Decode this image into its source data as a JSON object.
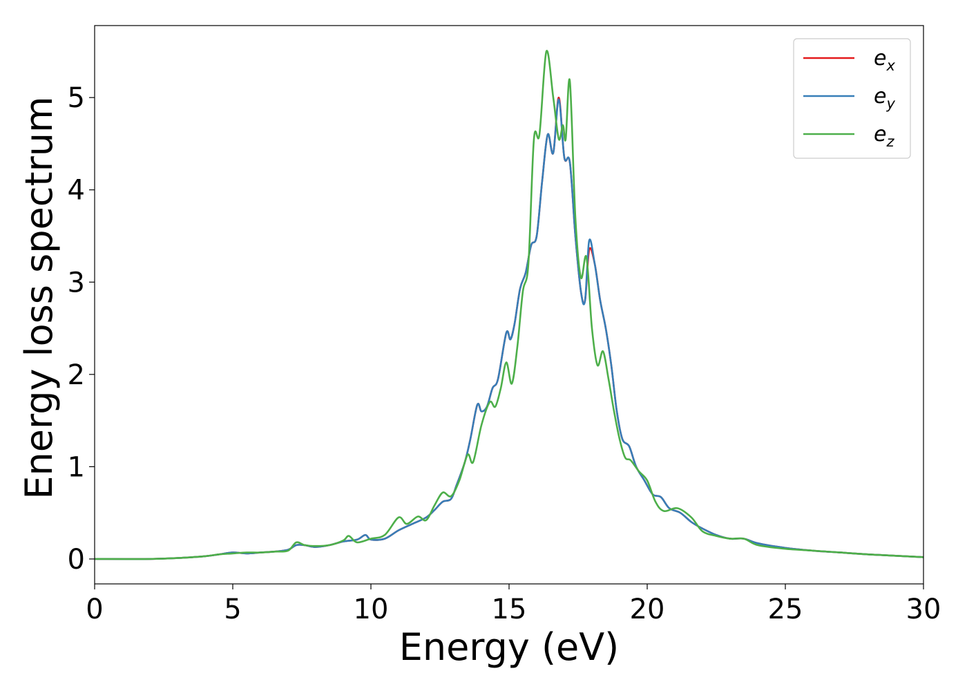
{
  "chart_data": {
    "type": "line",
    "title": "",
    "xlabel": "Energy (eV)",
    "ylabel": "Energy loss spectrum",
    "xlim": [
      0,
      30
    ],
    "ylim": [
      -0.27,
      5.78
    ],
    "xticks": [
      0,
      5,
      10,
      15,
      20,
      25,
      30
    ],
    "xtick_labels": [
      "0",
      "5",
      "10",
      "15",
      "20",
      "25",
      "30"
    ],
    "yticks": [
      0,
      1,
      2,
      3,
      4,
      5
    ],
    "ytick_labels": [
      "0",
      "1",
      "2",
      "3",
      "4",
      "5"
    ],
    "grid": false,
    "legend_position": "top-right",
    "series": [
      {
        "name": "e_x",
        "legend_base": "e",
        "legend_sub": "x",
        "color": "#e41a1c",
        "x": [
          0,
          2,
          3,
          4,
          4.5,
          5,
          5.5,
          6,
          6.5,
          7,
          7.3,
          7.6,
          8,
          8.5,
          9,
          9.5,
          9.8,
          10,
          10.5,
          11,
          11.5,
          12,
          12.3,
          12.6,
          12.9,
          13.1,
          13.4,
          13.6,
          13.85,
          14.0,
          14.2,
          14.4,
          14.6,
          14.9,
          15.05,
          15.2,
          15.4,
          15.6,
          15.8,
          16.0,
          16.2,
          16.4,
          16.6,
          16.8,
          17.0,
          17.2,
          17.4,
          17.6,
          17.75,
          17.9,
          18.1,
          18.3,
          18.5,
          18.7,
          18.9,
          19.1,
          19.35,
          19.6,
          19.9,
          20.2,
          20.5,
          20.8,
          21.2,
          21.6,
          22,
          22.5,
          23,
          23.5,
          24,
          25,
          26,
          27,
          28,
          30
        ],
        "y": [
          0,
          0.0,
          0.01,
          0.03,
          0.05,
          0.07,
          0.06,
          0.07,
          0.08,
          0.1,
          0.15,
          0.15,
          0.13,
          0.15,
          0.19,
          0.21,
          0.26,
          0.21,
          0.22,
          0.31,
          0.38,
          0.45,
          0.53,
          0.62,
          0.65,
          0.8,
          1.05,
          1.3,
          1.67,
          1.6,
          1.65,
          1.85,
          1.95,
          2.45,
          2.38,
          2.55,
          2.93,
          3.1,
          3.4,
          3.5,
          4.1,
          4.6,
          4.4,
          5.0,
          4.35,
          4.3,
          3.5,
          2.9,
          2.8,
          3.35,
          3.2,
          2.8,
          2.5,
          2.1,
          1.6,
          1.3,
          1.22,
          1.0,
          0.85,
          0.7,
          0.67,
          0.55,
          0.5,
          0.4,
          0.33,
          0.26,
          0.22,
          0.22,
          0.17,
          0.12,
          0.09,
          0.07,
          0.05,
          0.02
        ]
      },
      {
        "name": "e_y",
        "legend_base": "e",
        "legend_sub": "y",
        "color": "#377eb8",
        "x": [
          0,
          2,
          3,
          4,
          4.5,
          5,
          5.5,
          6,
          6.5,
          7,
          7.3,
          7.6,
          8,
          8.5,
          9,
          9.5,
          9.8,
          10,
          10.5,
          11,
          11.5,
          12,
          12.3,
          12.6,
          12.9,
          13.1,
          13.4,
          13.6,
          13.85,
          14.0,
          14.2,
          14.4,
          14.6,
          14.9,
          15.05,
          15.2,
          15.4,
          15.6,
          15.8,
          16.0,
          16.2,
          16.4,
          16.6,
          16.8,
          17.0,
          17.2,
          17.4,
          17.6,
          17.75,
          17.9,
          18.1,
          18.3,
          18.5,
          18.7,
          18.9,
          19.1,
          19.35,
          19.6,
          19.9,
          20.2,
          20.5,
          20.8,
          21.2,
          21.6,
          22,
          22.5,
          23,
          23.5,
          24,
          25,
          26,
          27,
          28,
          30
        ],
        "y": [
          0,
          0.0,
          0.01,
          0.03,
          0.05,
          0.07,
          0.06,
          0.07,
          0.08,
          0.1,
          0.15,
          0.15,
          0.13,
          0.15,
          0.19,
          0.21,
          0.26,
          0.21,
          0.22,
          0.31,
          0.38,
          0.45,
          0.53,
          0.62,
          0.65,
          0.8,
          1.05,
          1.3,
          1.67,
          1.6,
          1.65,
          1.85,
          1.95,
          2.45,
          2.38,
          2.55,
          2.93,
          3.1,
          3.4,
          3.5,
          4.1,
          4.6,
          4.4,
          4.98,
          4.35,
          4.3,
          3.5,
          2.9,
          2.8,
          3.45,
          3.2,
          2.8,
          2.5,
          2.1,
          1.6,
          1.3,
          1.22,
          1.0,
          0.85,
          0.7,
          0.67,
          0.55,
          0.5,
          0.4,
          0.33,
          0.26,
          0.22,
          0.22,
          0.17,
          0.12,
          0.09,
          0.07,
          0.05,
          0.02
        ]
      },
      {
        "name": "e_z",
        "legend_base": "e",
        "legend_sub": "z",
        "color": "#4daf4a",
        "x": [
          0,
          2,
          3,
          4,
          4.5,
          5,
          5.5,
          6,
          6.5,
          7,
          7.3,
          7.6,
          8,
          8.5,
          9,
          9.2,
          9.5,
          10,
          10.5,
          11.0,
          11.3,
          11.7,
          12.0,
          12.3,
          12.6,
          12.9,
          13.2,
          13.5,
          13.7,
          14.0,
          14.3,
          14.5,
          14.7,
          14.9,
          15.1,
          15.3,
          15.5,
          15.7,
          15.9,
          16.1,
          16.35,
          16.6,
          16.8,
          16.95,
          17.05,
          17.2,
          17.4,
          17.6,
          17.8,
          18.0,
          18.2,
          18.4,
          18.6,
          18.8,
          19.0,
          19.2,
          19.4,
          19.7,
          20.0,
          20.3,
          20.6,
          21.1,
          21.6,
          22.0,
          22.5,
          23.0,
          23.5,
          24,
          25,
          26,
          27,
          28,
          30
        ],
        "y": [
          0,
          0.0,
          0.01,
          0.03,
          0.05,
          0.06,
          0.07,
          0.07,
          0.08,
          0.09,
          0.18,
          0.15,
          0.14,
          0.15,
          0.2,
          0.25,
          0.18,
          0.22,
          0.26,
          0.45,
          0.38,
          0.46,
          0.42,
          0.58,
          0.72,
          0.68,
          0.85,
          1.13,
          1.05,
          1.45,
          1.7,
          1.65,
          1.85,
          2.13,
          1.9,
          2.3,
          2.9,
          3.2,
          4.55,
          4.6,
          5.5,
          5.0,
          4.55,
          4.7,
          4.55,
          5.18,
          3.7,
          3.05,
          3.27,
          2.5,
          2.1,
          2.25,
          1.95,
          1.6,
          1.3,
          1.1,
          1.07,
          0.95,
          0.85,
          0.62,
          0.52,
          0.55,
          0.45,
          0.3,
          0.25,
          0.22,
          0.22,
          0.15,
          0.11,
          0.09,
          0.07,
          0.05,
          0.02
        ]
      }
    ]
  }
}
